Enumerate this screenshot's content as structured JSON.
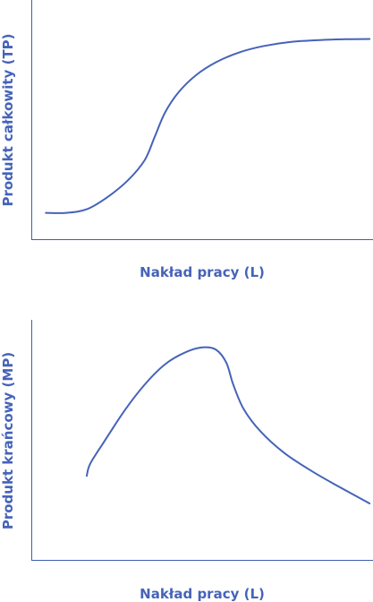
{
  "chart_data": [
    {
      "type": "line",
      "title": "",
      "xlabel": "Nakład pracy (L)",
      "ylabel": "Produkt całkowity (TP)",
      "grid": false,
      "xlim": [
        0,
        10
      ],
      "ylim": [
        0,
        10
      ],
      "series": [
        {
          "points": [
            [
              0.4,
              1.1
            ],
            [
              1.0,
              1.1
            ],
            [
              1.6,
              1.25
            ],
            [
              2.2,
              1.75
            ],
            [
              2.8,
              2.45
            ],
            [
              3.3,
              3.3
            ],
            [
              3.6,
              4.3
            ],
            [
              3.9,
              5.3
            ],
            [
              4.3,
              6.15
            ],
            [
              4.8,
              6.85
            ],
            [
              5.4,
              7.4
            ],
            [
              6.1,
              7.82
            ],
            [
              6.8,
              8.08
            ],
            [
              7.6,
              8.25
            ],
            [
              8.5,
              8.33
            ],
            [
              9.2,
              8.36
            ],
            [
              9.9,
              8.37
            ]
          ]
        }
      ]
    },
    {
      "type": "line",
      "title": "",
      "xlabel": "Nakład pracy (L)",
      "ylabel": "Produkt krańcowy (MP)",
      "grid": false,
      "xlim": [
        0,
        10
      ],
      "ylim": [
        0,
        10
      ],
      "series": [
        {
          "points": [
            [
              1.6,
              3.5
            ],
            [
              1.7,
              4.0
            ],
            [
              2.1,
              4.9
            ],
            [
              2.7,
              6.2
            ],
            [
              3.3,
              7.3
            ],
            [
              3.9,
              8.15
            ],
            [
              4.5,
              8.65
            ],
            [
              5.0,
              8.85
            ],
            [
              5.4,
              8.75
            ],
            [
              5.7,
              8.2
            ],
            [
              5.9,
              7.3
            ],
            [
              6.2,
              6.3
            ],
            [
              6.7,
              5.35
            ],
            [
              7.4,
              4.45
            ],
            [
              8.2,
              3.7
            ],
            [
              9.0,
              3.05
            ],
            [
              9.9,
              2.35
            ]
          ]
        }
      ]
    }
  ]
}
